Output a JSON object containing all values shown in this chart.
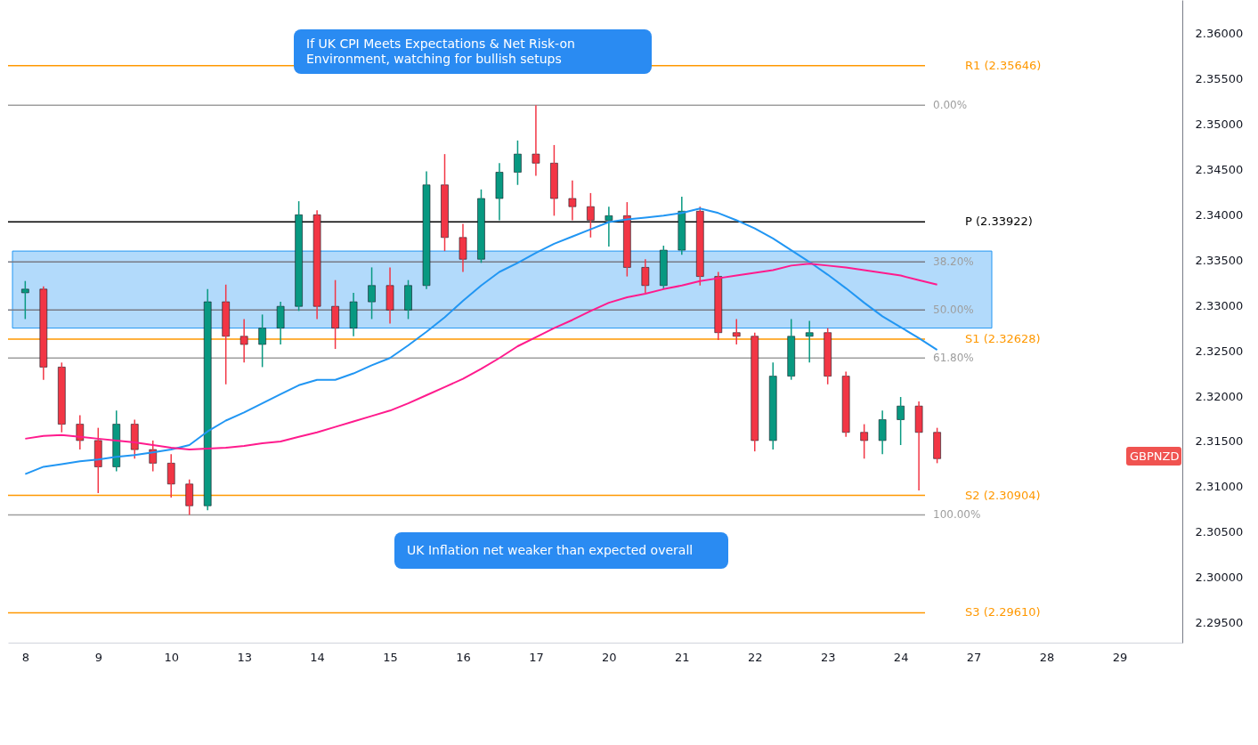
{
  "chart_data": {
    "type": "candlestick",
    "categories": [
      "8",
      null,
      null,
      null,
      "9",
      null,
      null,
      null,
      "10",
      null,
      null,
      null,
      "13",
      null,
      null,
      null,
      "14",
      null,
      null,
      null,
      "15",
      null,
      null,
      null,
      "16",
      null,
      null,
      null,
      "17",
      null,
      null,
      null,
      "20",
      null,
      null,
      null,
      "21",
      null,
      null,
      null,
      "22",
      null,
      null,
      null,
      "23",
      null,
      null,
      null,
      "24",
      null,
      null,
      null,
      "27",
      null,
      null,
      null,
      "28",
      null,
      null,
      null,
      "29",
      null,
      null,
      null
    ],
    "ohlc": [
      [
        2.3314,
        2.3327,
        2.3285,
        2.3318
      ],
      [
        2.3318,
        2.3321,
        2.3218,
        2.3232
      ],
      [
        2.3232,
        2.3237,
        2.316,
        2.3169
      ],
      [
        2.3169,
        2.3179,
        2.3141,
        2.3151
      ],
      [
        2.3151,
        2.3165,
        2.3093,
        2.3122
      ],
      [
        2.3122,
        2.3184,
        2.3117,
        2.3169
      ],
      [
        2.3169,
        2.3174,
        2.3131,
        2.3141
      ],
      [
        2.3141,
        2.3151,
        2.3117,
        2.3126
      ],
      [
        2.3126,
        2.3136,
        2.3088,
        2.3103
      ],
      [
        2.3103,
        2.3108,
        2.3069,
        2.3079
      ],
      [
        2.3079,
        2.3318,
        2.3074,
        2.3304
      ],
      [
        2.3304,
        2.3323,
        2.3213,
        2.3266
      ],
      [
        2.3266,
        2.3285,
        2.3237,
        2.3257
      ],
      [
        2.3257,
        2.329,
        2.3232,
        2.3275
      ],
      [
        2.3275,
        2.3304,
        2.3257,
        2.3299
      ],
      [
        2.3299,
        2.3415,
        2.3294,
        2.34
      ],
      [
        2.34,
        2.3405,
        2.3285,
        2.3299
      ],
      [
        2.3299,
        2.3328,
        2.3252,
        2.3275
      ],
      [
        2.3275,
        2.3314,
        2.3266,
        2.3304
      ],
      [
        2.3304,
        2.3342,
        2.3285,
        2.3322
      ],
      [
        2.3322,
        2.3342,
        2.328,
        2.3295
      ],
      [
        2.3295,
        2.3328,
        2.3285,
        2.3322
      ],
      [
        2.3322,
        2.3448,
        2.3318,
        2.3433
      ],
      [
        2.3433,
        2.3467,
        2.336,
        2.3375
      ],
      [
        2.3375,
        2.339,
        2.3337,
        2.3351
      ],
      [
        2.3351,
        2.3428,
        2.3347,
        2.3418
      ],
      [
        2.3418,
        2.3457,
        2.3394,
        2.3447
      ],
      [
        2.3447,
        2.3482,
        2.3433,
        2.3467
      ],
      [
        2.3467,
        2.3521,
        2.3443,
        2.3457
      ],
      [
        2.3457,
        2.3477,
        2.3399,
        2.3418
      ],
      [
        2.3418,
        2.3438,
        2.3394,
        2.3409
      ],
      [
        2.3409,
        2.3424,
        2.3375,
        2.3394
      ],
      [
        2.3394,
        2.3409,
        2.3365,
        2.3399
      ],
      [
        2.3399,
        2.3414,
        2.3332,
        2.3342
      ],
      [
        2.3342,
        2.3351,
        2.3314,
        2.3322
      ],
      [
        2.3322,
        2.3366,
        2.3318,
        2.3361
      ],
      [
        2.3361,
        2.342,
        2.3356,
        2.3404
      ],
      [
        2.3404,
        2.3409,
        2.3322,
        2.3332
      ],
      [
        2.3332,
        2.3337,
        2.3262,
        2.327
      ],
      [
        2.327,
        2.3285,
        2.3257,
        2.3266
      ],
      [
        2.3266,
        2.327,
        2.3139,
        2.3151
      ],
      [
        2.3151,
        2.3237,
        2.3141,
        2.3222
      ],
      [
        2.3222,
        2.3285,
        2.3218,
        2.3266
      ],
      [
        2.3266,
        2.3283,
        2.3237,
        2.327
      ],
      [
        2.327,
        2.3275,
        2.3213,
        2.3222
      ],
      [
        2.3222,
        2.3227,
        2.3155,
        2.316
      ],
      [
        2.316,
        2.3169,
        2.3131,
        2.3151
      ],
      [
        2.3151,
        2.3184,
        2.3136,
        2.3174
      ],
      [
        2.3174,
        2.3199,
        2.3146,
        2.3189
      ],
      [
        2.3189,
        2.3194,
        2.3096,
        2.316
      ],
      [
        2.316,
        2.3165,
        2.3126,
        2.3131
      ],
      null,
      null,
      null,
      null,
      null,
      null,
      null,
      null,
      null,
      null,
      null,
      null,
      null
    ],
    "colors": [
      "#089981",
      "#f23645",
      "#f23645",
      "#f23645",
      "#f23645",
      "#089981",
      "#f23645",
      "#f23645",
      "#f23645",
      "#f23645",
      "#089981",
      "#f23645",
      "#f23645",
      "#089981",
      "#089981",
      "#089981",
      "#f23645",
      "#f23645",
      "#089981",
      "#089981",
      "#f23645",
      "#089981",
      "#089981",
      "#f23645",
      "#f23645",
      "#089981",
      "#089981",
      "#089981",
      "#f23645",
      "#f23645",
      "#f23645",
      "#f23645",
      "#089981",
      "#f23645",
      "#f23645",
      "#089981",
      "#089981",
      "#f23645",
      "#f23645",
      "#f23645",
      "#f23645",
      "#089981",
      "#089981",
      "#089981",
      "#f23645",
      "#f23645",
      "#f23645",
      "#089981",
      "#089981",
      "#f23645",
      "#f23645",
      null,
      null,
      null,
      null,
      null,
      null,
      null,
      null,
      null,
      null,
      null,
      null,
      null
    ],
    "series": [
      {
        "type": "line",
        "color": "#2196f3",
        "values": [
          2.3114,
          2.3122,
          2.3125,
          2.3128,
          2.313,
          2.3133,
          2.3135,
          2.3138,
          2.3141,
          2.3146,
          2.3161,
          2.3173,
          2.3182,
          2.3192,
          2.3202,
          2.3212,
          2.3218,
          2.3218,
          2.3225,
          2.3234,
          2.3242,
          2.3256,
          2.3271,
          2.3287,
          2.3305,
          2.3322,
          2.3337,
          2.3347,
          2.3358,
          2.3368,
          2.3376,
          2.3384,
          2.3392,
          2.3395,
          2.3397,
          2.3399,
          2.3402,
          2.3407,
          2.3402,
          2.3394,
          2.3385,
          2.3374,
          2.3361,
          2.3348,
          2.3334,
          2.3319,
          2.3303,
          2.3288,
          2.3276,
          2.3264,
          2.3251,
          null,
          null,
          null,
          null,
          null,
          null,
          null,
          null,
          null,
          null,
          null,
          null,
          null
        ]
      },
      {
        "type": "line",
        "color": "#ff1b8d",
        "values": [
          2.3153,
          2.3156,
          2.3157,
          2.3155,
          2.3153,
          2.3151,
          2.3149,
          2.3146,
          2.3143,
          2.3141,
          2.3142,
          2.3143,
          2.3145,
          2.3148,
          2.315,
          2.3155,
          2.316,
          2.3166,
          2.3172,
          2.3178,
          2.3184,
          2.3192,
          2.3201,
          2.321,
          2.3219,
          2.323,
          2.3242,
          2.3255,
          2.3265,
          2.3275,
          2.3284,
          2.3294,
          2.3303,
          2.3309,
          2.3313,
          2.3318,
          2.3322,
          2.3327,
          2.333,
          2.3333,
          2.3336,
          2.3339,
          2.3344,
          2.3346,
          2.3344,
          2.3342,
          2.3339,
          2.3336,
          2.3333,
          2.3328,
          2.3323,
          null,
          null,
          null,
          null,
          null,
          null,
          null,
          null,
          null,
          null,
          null,
          null,
          null
        ]
      }
    ],
    "ylim": [
      2.2928,
      2.3637
    ],
    "yticks": [
      {
        "value": 2.295,
        "label": "2.29500"
      },
      {
        "value": 2.3,
        "label": "2.30000"
      },
      {
        "value": 2.305,
        "label": "2.30500"
      },
      {
        "value": 2.31,
        "label": "2.31000"
      },
      {
        "value": 2.315,
        "label": "2.31500"
      },
      {
        "value": 2.32,
        "label": "2.32000"
      },
      {
        "value": 2.325,
        "label": "2.32500"
      },
      {
        "value": 2.33,
        "label": "2.33000"
      },
      {
        "value": 2.335,
        "label": "2.33500"
      },
      {
        "value": 2.34,
        "label": "2.34000"
      },
      {
        "value": 2.345,
        "label": "2.34500"
      },
      {
        "value": 2.35,
        "label": "2.35000"
      },
      {
        "value": 2.355,
        "label": "2.35500"
      },
      {
        "value": 2.36,
        "label": "2.36000"
      }
    ],
    "bands": [
      {
        "axis": "y",
        "from": 2.3275,
        "to": 2.336,
        "color": "#2196f3"
      }
    ],
    "ref_lines": [
      {
        "axis": "y",
        "value": 2.35646,
        "label": "R1 (2.35646)",
        "color": "#ff9800"
      },
      {
        "axis": "y",
        "value": 2.3521,
        "color": "#9e9e9e"
      },
      {
        "axis": "y",
        "value": 2.33922,
        "label": "P (2.33922)",
        "color": "#000000"
      },
      {
        "axis": "y",
        "value": 2.3348,
        "color": "#787b86"
      },
      {
        "axis": "y",
        "value": 2.3295,
        "color": "#787b86"
      },
      {
        "axis": "y",
        "value": 2.32628,
        "label": "S1 (2.32628)",
        "color": "#ff9800"
      },
      {
        "axis": "y",
        "value": 2.3242,
        "color": "#9e9e9e"
      },
      {
        "axis": "y",
        "value": 2.30904,
        "label": "S2 (2.30904)",
        "color": "#ff9800"
      },
      {
        "axis": "y",
        "value": 2.3069,
        "color": "#9e9e9e"
      },
      {
        "axis": "y",
        "value": 2.2961,
        "label": "S3 (2.29610)",
        "color": "#ff9800"
      }
    ],
    "annotations": [
      "If UK CPI Meets Expectations & Net Risk-on Environment, watching for bullish setups",
      "UK Inflation net weaker than expected overall",
      "GBPNZD",
      "0.00%",
      "38.20%",
      "50.00%",
      "61.80%",
      "100.00%"
    ]
  }
}
